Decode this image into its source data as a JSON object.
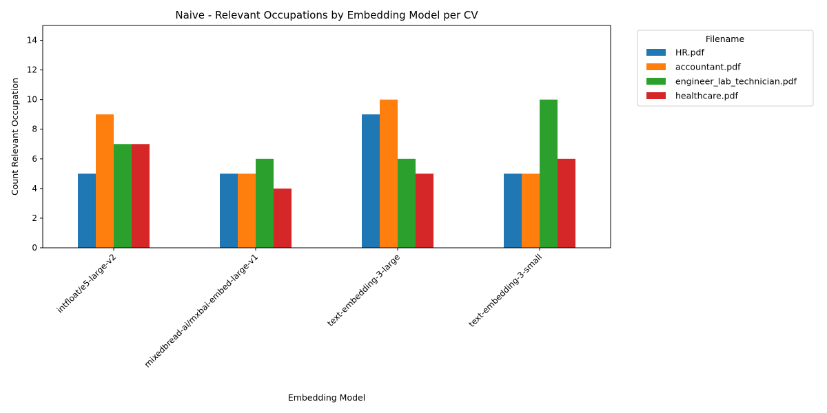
{
  "chart_data": {
    "type": "bar",
    "title": "Naive - Relevant Occupations by Embedding Model per CV",
    "xlabel": "Embedding Model",
    "ylabel": "Count Relevant Occupation",
    "categories": [
      "intfloat/e5-large-v2",
      "mixedbread-ai/mxbai-embed-large-v1",
      "text-embedding-3-large",
      "text-embedding-3-small"
    ],
    "series": [
      {
        "name": "HR.pdf",
        "color": "#1f77b4",
        "values": [
          5,
          5,
          9,
          5
        ]
      },
      {
        "name": "accountant.pdf",
        "color": "#ff7f0e",
        "values": [
          9,
          5,
          10,
          5
        ]
      },
      {
        "name": "engineer_lab_technician.pdf",
        "color": "#2ca02c",
        "values": [
          7,
          6,
          6,
          10
        ]
      },
      {
        "name": "healthcare.pdf",
        "color": "#d62728",
        "values": [
          7,
          4,
          5,
          6
        ]
      }
    ],
    "ylim": [
      0,
      15
    ],
    "yticks": [
      0,
      2,
      4,
      6,
      8,
      10,
      12,
      14
    ],
    "legend_title": "Filename",
    "legend_position": "outside-top-right",
    "grid": false
  }
}
